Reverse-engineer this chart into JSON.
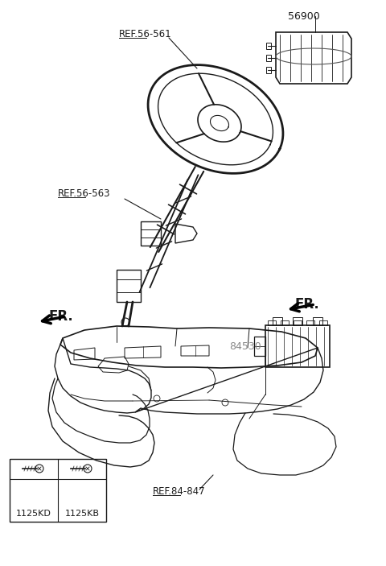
{
  "bg_color": "#ffffff",
  "fig_width": 4.8,
  "fig_height": 7.03,
  "dpi": 100,
  "labels": {
    "ref56561": "REF.56-561",
    "ref56563": "REF.56-563",
    "part56900": "56900",
    "part84530": "84530",
    "ref84847": "REF.84-847",
    "fr1": "FR.",
    "fr2": "FR.",
    "bolt1": "1125KD",
    "bolt2": "1125KB"
  },
  "lc": "#1a1a1a",
  "tc": "#1a1a1a",
  "gray": "#888888"
}
